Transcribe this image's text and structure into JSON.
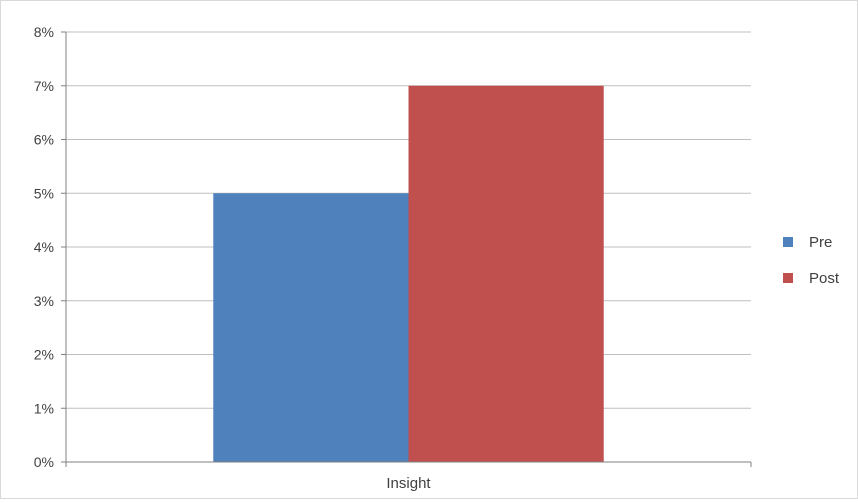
{
  "chart_data": {
    "type": "bar",
    "categories": [
      "Insight"
    ],
    "series": [
      {
        "name": "Pre",
        "values": [
          0.05
        ],
        "color": "#4F81BD"
      },
      {
        "name": "Post",
        "values": [
          0.07
        ],
        "color": "#C0504D"
      }
    ],
    "y_ticks": [
      "0%",
      "1%",
      "2%",
      "3%",
      "4%",
      "5%",
      "6%",
      "7%",
      "8%"
    ],
    "ylim": [
      0,
      0.08
    ],
    "y_format": "percent",
    "grid": true,
    "legend_position": "right",
    "gridline_color": "#BFBFBF",
    "axis_color": "#808080"
  }
}
